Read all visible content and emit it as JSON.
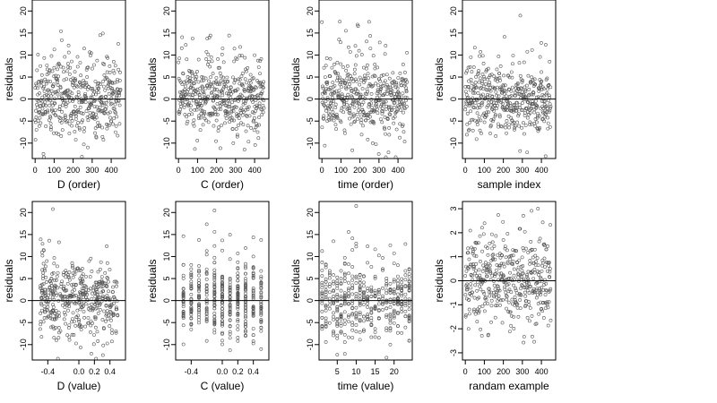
{
  "figure": {
    "colors": {
      "points": "#555555",
      "frame": "#000000",
      "zero_line": "#000000"
    }
  },
  "chart_data": [
    {
      "type": "scatter",
      "xlabel": "D (order)",
      "ylabel": "residuals",
      "xlim": [
        -15,
        475
      ],
      "ylim": [
        -13.5,
        22.5
      ],
      "xticks": [
        0,
        100,
        200,
        300,
        400
      ],
      "yticks": [
        -10,
        -5,
        0,
        5,
        10,
        15,
        20
      ],
      "xtick_labels": [
        "0",
        "100",
        "200",
        "300",
        "400"
      ],
      "ytick_labels": [
        "-10",
        "-5",
        "0",
        "5",
        "10",
        "15",
        "20"
      ],
      "hline": 0,
      "n_points": 450,
      "gen": "order",
      "seed": 11
    },
    {
      "type": "scatter",
      "xlabel": "C (order)",
      "ylabel": "residuals",
      "xlim": [
        -15,
        475
      ],
      "ylim": [
        -13.5,
        22.5
      ],
      "xticks": [
        0,
        100,
        200,
        300,
        400
      ],
      "yticks": [
        -10,
        -5,
        0,
        5,
        10,
        15,
        20
      ],
      "xtick_labels": [
        "0",
        "100",
        "200",
        "300",
        "400"
      ],
      "ytick_labels": [
        "-10",
        "-5",
        "0",
        "5",
        "10",
        "15",
        "20"
      ],
      "hline": 0,
      "n_points": 450,
      "gen": "order",
      "seed": 23
    },
    {
      "type": "scatter",
      "xlabel": "time (order)",
      "ylabel": "residuals",
      "xlim": [
        -15,
        475
      ],
      "ylim": [
        -13.5,
        22.5
      ],
      "xticks": [
        0,
        100,
        200,
        300,
        400
      ],
      "yticks": [
        -10,
        -5,
        0,
        5,
        10,
        15,
        20
      ],
      "xtick_labels": [
        "0",
        "100",
        "200",
        "300",
        "400"
      ],
      "ytick_labels": [
        "-10",
        "-5",
        "0",
        "5",
        "10",
        "15",
        "20"
      ],
      "hline": 0,
      "n_points": 450,
      "gen": "order",
      "seed": 37
    },
    {
      "type": "scatter",
      "xlabel": "sample index",
      "ylabel": "residuals",
      "xlim": [
        -15,
        475
      ],
      "ylim": [
        -13.5,
        22.5
      ],
      "xticks": [
        0,
        100,
        200,
        300,
        400
      ],
      "yticks": [
        -10,
        -5,
        0,
        5,
        10,
        15,
        20
      ],
      "xtick_labels": [
        "0",
        "100",
        "200",
        "300",
        "400"
      ],
      "ytick_labels": [
        "-10",
        "-5",
        "0",
        "5",
        "10",
        "15",
        "20"
      ],
      "hline": 0,
      "n_points": 450,
      "gen": "order",
      "seed": 41
    },
    {
      "type": "scatter",
      "xlabel": "D (value)",
      "ylabel": "residuals",
      "xlim": [
        -0.6,
        0.6
      ],
      "ylim": [
        -13.5,
        22.5
      ],
      "xticks": [
        -0.4,
        0.0,
        0.2,
        0.4
      ],
      "yticks": [
        -10,
        -5,
        0,
        5,
        10,
        15,
        20
      ],
      "xtick_labels": [
        "-0.4",
        "0.0",
        "0.2",
        "0.4"
      ],
      "ytick_labels": [
        "-10",
        "-5",
        "0",
        "5",
        "10",
        "15",
        "20"
      ],
      "hline": 0,
      "n_points": 450,
      "gen": "uniform",
      "seed": 53
    },
    {
      "type": "scatter",
      "xlabel": "C (value)",
      "ylabel": "residuals",
      "xlim": [
        -0.6,
        0.6
      ],
      "ylim": [
        -13.5,
        22.5
      ],
      "xticks": [
        -0.4,
        0.0,
        0.2,
        0.4
      ],
      "yticks": [
        -10,
        -5,
        0,
        5,
        10,
        15,
        20
      ],
      "xtick_labels": [
        "-0.4",
        "0.0",
        "0.2",
        "0.4"
      ],
      "ytick_labels": [
        "-10",
        "-5",
        "0",
        "5",
        "10",
        "15",
        "20"
      ],
      "hline": 0,
      "n_points": 450,
      "gen": "columns",
      "x_levels": [
        -0.5,
        -0.4,
        -0.3,
        -0.2,
        -0.1,
        0.0,
        0.1,
        0.2,
        0.3,
        0.4,
        0.5
      ],
      "seed": 67
    },
    {
      "type": "scatter",
      "xlabel": "time (value)",
      "ylabel": "residuals",
      "xlim": [
        0.2,
        24.8
      ],
      "ylim": [
        -13.5,
        22.5
      ],
      "xticks": [
        5,
        10,
        15,
        20
      ],
      "yticks": [
        -10,
        -5,
        0,
        5,
        10,
        15,
        20
      ],
      "xtick_labels": [
        "5",
        "10",
        "15",
        "20"
      ],
      "ytick_labels": [
        "-10",
        "-5",
        "0",
        "5",
        "10",
        "15",
        "20"
      ],
      "hline": 0,
      "n_points": 450,
      "gen": "columns",
      "x_levels": [
        1,
        2,
        3,
        4,
        5,
        6,
        7,
        8,
        9,
        10,
        11,
        12,
        13,
        14,
        15,
        16,
        17,
        18,
        19,
        20,
        21,
        22,
        23,
        24
      ],
      "seed": 79
    },
    {
      "type": "scatter",
      "xlabel": "randam example",
      "ylabel": "residuals",
      "xlim": [
        -15,
        475
      ],
      "ylim": [
        -3.3,
        3.3
      ],
      "xticks": [
        0,
        100,
        200,
        300,
        400
      ],
      "yticks": [
        -3,
        -2,
        -1,
        0,
        1,
        2,
        3
      ],
      "xtick_labels": [
        "0",
        "100",
        "200",
        "300",
        "400"
      ],
      "ytick_labels": [
        "-3",
        "-2",
        "-1",
        "0",
        "1",
        "2",
        "3"
      ],
      "hline": 0,
      "n_points": 450,
      "gen": "normal",
      "seed": 97
    }
  ]
}
